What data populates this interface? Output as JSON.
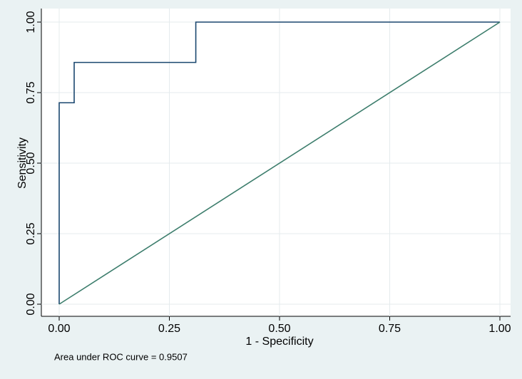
{
  "chart_data": {
    "type": "line",
    "xlabel": "1 - Specificity",
    "ylabel": "Sensitivity",
    "note": "Area under ROC curve = 0.9507",
    "series": [
      {
        "color": "#1a476f",
        "x": [
          0,
          0,
          0.034,
          0.034,
          0.31,
          0.31,
          1
        ],
        "values": [
          0,
          0.714,
          0.714,
          0.857,
          0.857,
          1,
          1
        ],
        "step": true
      },
      {
        "color": "#3c7d6c",
        "x": [
          0,
          1
        ],
        "values": [
          0,
          1
        ]
      }
    ],
    "xlim": [
      0,
      1
    ],
    "ylim": [
      0,
      1
    ],
    "xticks": [
      {
        "value": 0,
        "label": "0.00"
      },
      {
        "value": 0.25,
        "label": "0.25"
      },
      {
        "value": 0.5,
        "label": "0.50"
      },
      {
        "value": 0.75,
        "label": "0.75"
      },
      {
        "value": 1,
        "label": "1.00"
      }
    ],
    "yticks": [
      {
        "value": 0,
        "label": "0.00"
      },
      {
        "value": 0.25,
        "label": "0.25"
      },
      {
        "value": 0.5,
        "label": "0.50"
      },
      {
        "value": 0.75,
        "label": "0.75"
      },
      {
        "value": 1,
        "label": "1.00"
      }
    ],
    "grid": true
  }
}
